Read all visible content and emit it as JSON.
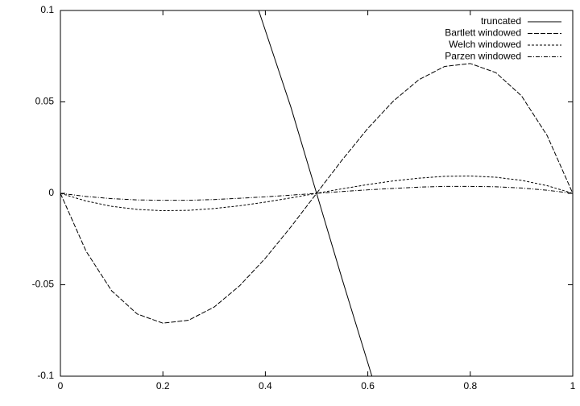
{
  "chart_data": {
    "type": "line",
    "xlim": [
      0,
      1
    ],
    "ylim": [
      -0.1,
      0.1
    ],
    "xticks": [
      0,
      0.2,
      0.4,
      0.6,
      0.8,
      1
    ],
    "yticks": [
      0.1,
      0.05,
      0,
      -0.05,
      -0.1
    ],
    "legend": "top-right",
    "x": [
      0,
      0.05,
      0.1,
      0.15,
      0.2,
      0.25,
      0.3,
      0.35,
      0.4,
      0.45,
      0.5,
      0.55,
      0.6,
      0.65,
      0.7,
      0.75,
      0.8,
      0.85,
      0.9,
      0.95,
      1
    ],
    "series": [
      {
        "name": "truncated",
        "color": "#000000",
        "dash": "none",
        "x": [
          0.387,
          0.45,
          0.5,
          0.55,
          0.608
        ],
        "values": [
          0.1,
          0.047,
          0,
          -0.047,
          -0.1
        ]
      },
      {
        "name": "Bartlett windowed",
        "color": "#000000",
        "dash": "6 2",
        "values": [
          0,
          -0.0316,
          -0.0533,
          -0.066,
          -0.071,
          -0.0694,
          -0.0622,
          -0.0505,
          -0.0355,
          -0.0183,
          0,
          0.0183,
          0.0355,
          0.0505,
          0.0622,
          0.0694,
          0.071,
          0.066,
          0.0533,
          0.0316,
          0
        ]
      },
      {
        "name": "Welch windowed",
        "color": "#000000",
        "dash": "3 2",
        "values": [
          0,
          -0.0042,
          -0.0071,
          -0.0088,
          -0.0095,
          -0.0093,
          -0.0083,
          -0.0068,
          -0.0048,
          -0.0025,
          0,
          0.0025,
          0.0048,
          0.0068,
          0.0083,
          0.0093,
          0.0095,
          0.0088,
          0.0071,
          0.0042,
          0
        ]
      },
      {
        "name": "Parzen windowed",
        "color": "#000000",
        "dash": "5 2 1 2",
        "values": [
          0,
          -0.0017,
          -0.0029,
          -0.0036,
          -0.0038,
          -0.0038,
          -0.0034,
          -0.0027,
          -0.0019,
          -0.001,
          0,
          0.001,
          0.0019,
          0.0027,
          0.0034,
          0.0038,
          0.0038,
          0.0036,
          0.0029,
          0.0017,
          0
        ]
      }
    ]
  }
}
